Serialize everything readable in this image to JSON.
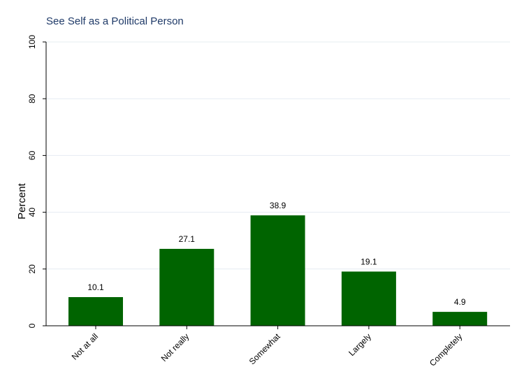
{
  "chart_data": {
    "type": "bar",
    "title": "See Self as a Political Person",
    "ylabel": "Percent",
    "xlabel": "",
    "categories": [
      "Not at all",
      "Not really",
      "Somewhat",
      "Largely",
      "Completely"
    ],
    "values": [
      10.1,
      27.1,
      38.9,
      19.1,
      4.9
    ],
    "data_labels": [
      "10.1",
      "27.1",
      "38.9",
      "19.1",
      "4.9"
    ],
    "ylim": [
      0,
      100
    ],
    "yticks": [
      0,
      20,
      40,
      60,
      80,
      100
    ],
    "ytick_labels": [
      "0",
      "20",
      "40",
      "60",
      "80",
      "100"
    ],
    "grid": true,
    "bar_color": "#006400",
    "title_color": "#1f3a68"
  }
}
